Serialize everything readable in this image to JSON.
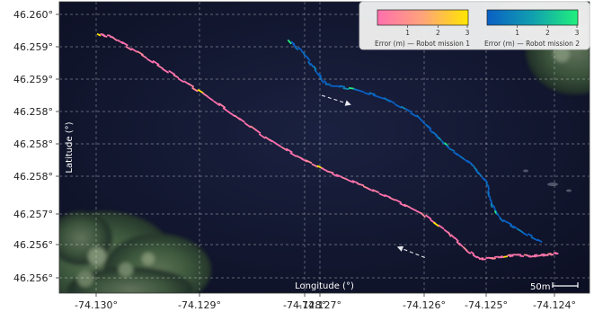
{
  "chart_data": {
    "type": "map-trajectory",
    "xlabel": "Longitude (°)",
    "ylabel": "Latitude (°)",
    "x_ticks": [
      "-74.130°",
      "-74.129°",
      "-74.128°",
      "-74.127°",
      "-74.126°",
      "-74.125°",
      "-74.124°"
    ],
    "y_ticks": [
      "46.260°",
      "46.259°",
      "46.259°",
      "46.258°",
      "46.258°",
      "46.258°",
      "46.257°",
      "46.256°",
      "46.256°"
    ],
    "grid": true,
    "background": "satellite imagery: dark water with forested shoreline at bottom-left and top-right",
    "scale_bar": "50m",
    "colorbars": [
      {
        "label": "Error (m) — Robot mission 1",
        "ticks": [
          "1",
          "2",
          "3"
        ],
        "colors": [
          "#ff6fae",
          "#ffe600"
        ]
      },
      {
        "label": "Error (m) — Robot mission 2",
        "ticks": [
          "1",
          "2",
          "3"
        ],
        "colors": [
          "#0a5fc4",
          "#21f07c"
        ]
      }
    ],
    "series": [
      {
        "mission": 1,
        "colormap": "pink-yellow",
        "points_lonlat": [
          [
            -74.12998,
            46.25975
          ],
          [
            -74.12979,
            46.25971
          ],
          [
            -74.1294,
            46.25945
          ],
          [
            -74.12898,
            46.25916
          ],
          [
            -74.1286,
            46.2589
          ],
          [
            -74.12818,
            46.25858
          ],
          [
            -74.12778,
            46.25827
          ],
          [
            -74.12737,
            46.258
          ],
          [
            -74.12697,
            46.25778
          ],
          [
            -74.12657,
            46.2576
          ],
          [
            -74.12615,
            46.2574
          ],
          [
            -74.12574,
            46.25718
          ],
          [
            -74.12538,
            46.2569
          ],
          [
            -74.12515,
            46.25665
          ],
          [
            -74.12497,
            46.25652
          ],
          [
            -74.12472,
            46.25654
          ],
          [
            -74.1245,
            46.25658
          ],
          [
            -74.12428,
            46.25656
          ],
          [
            -74.12411,
            46.25658
          ],
          [
            -74.12395,
            46.2566
          ]
        ]
      },
      {
        "mission": 2,
        "colormap": "blue-green",
        "points_lonlat": [
          [
            -74.12748,
            46.25966
          ],
          [
            -74.12728,
            46.25948
          ],
          [
            -74.12713,
            46.25924
          ],
          [
            -74.12699,
            46.25903
          ],
          [
            -74.12662,
            46.25896
          ],
          [
            -74.12622,
            46.25883
          ],
          [
            -74.12579,
            46.25858
          ],
          [
            -74.12558,
            46.25834
          ],
          [
            -74.12536,
            46.2581
          ],
          [
            -74.12508,
            46.25788
          ],
          [
            -74.12488,
            46.25762
          ],
          [
            -74.12482,
            46.25731
          ],
          [
            -74.1247,
            46.2571
          ],
          [
            -74.12443,
            46.25692
          ],
          [
            -74.12416,
            46.25676
          ]
        ]
      }
    ],
    "arrows": [
      {
        "from": [
          -74.12704,
          46.25887
        ],
        "to": [
          -74.12667,
          46.25874
        ],
        "style": "dashed"
      },
      {
        "from": [
          -74.12569,
          46.25654
        ],
        "to": [
          -74.12604,
          46.25669
        ],
        "style": "dashed"
      }
    ]
  }
}
